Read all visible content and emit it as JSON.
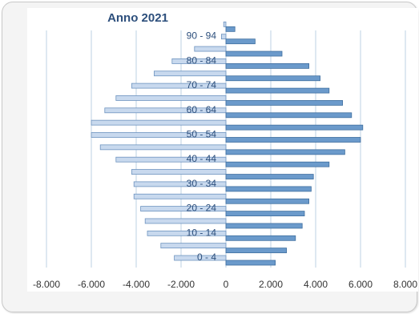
{
  "chart_data": {
    "type": "bar",
    "orientation": "horizontal",
    "title": "Anno 2021",
    "xlabel": "",
    "ylabel": "",
    "xlim": [
      -8000,
      8000
    ],
    "x_ticks": [
      "-8.000",
      "-6.000",
      "-4.000",
      "-2.000",
      "0",
      "2.000",
      "4.000",
      "6.000",
      "8.000"
    ],
    "grid": "vertical",
    "legend": "none",
    "colors": {
      "left_bar": "#c8d9ee",
      "left_bar_border": "#6d93bf",
      "right_bar": "#6b9acb",
      "right_bar_border": "#3f6f9f",
      "grid": "#bcd0e3",
      "title": "#2d4f7c"
    },
    "categories": [
      "0 - 4",
      "",
      "10 - 14",
      "",
      "20 - 24",
      "",
      "30 - 34",
      "",
      "40 - 44",
      "",
      "50 - 54",
      "",
      "60 - 64",
      "",
      "70 - 74",
      "",
      "80 - 84",
      "",
      "90 - 94",
      ""
    ],
    "series": [
      {
        "values": [
          -2300,
          -2900,
          -3500,
          -3600,
          -3800,
          -4100,
          -4100,
          -4200,
          -4900,
          -5600,
          -6000,
          -6000,
          -5400,
          -4900,
          -4200,
          -3200,
          -2400,
          -1400,
          -200,
          -100
        ]
      },
      {
        "values": [
          2200,
          2700,
          3100,
          3400,
          3500,
          3700,
          3800,
          3900,
          4600,
          5300,
          6000,
          6100,
          5600,
          5200,
          4600,
          4200,
          3700,
          2500,
          1300,
          400
        ]
      }
    ]
  }
}
